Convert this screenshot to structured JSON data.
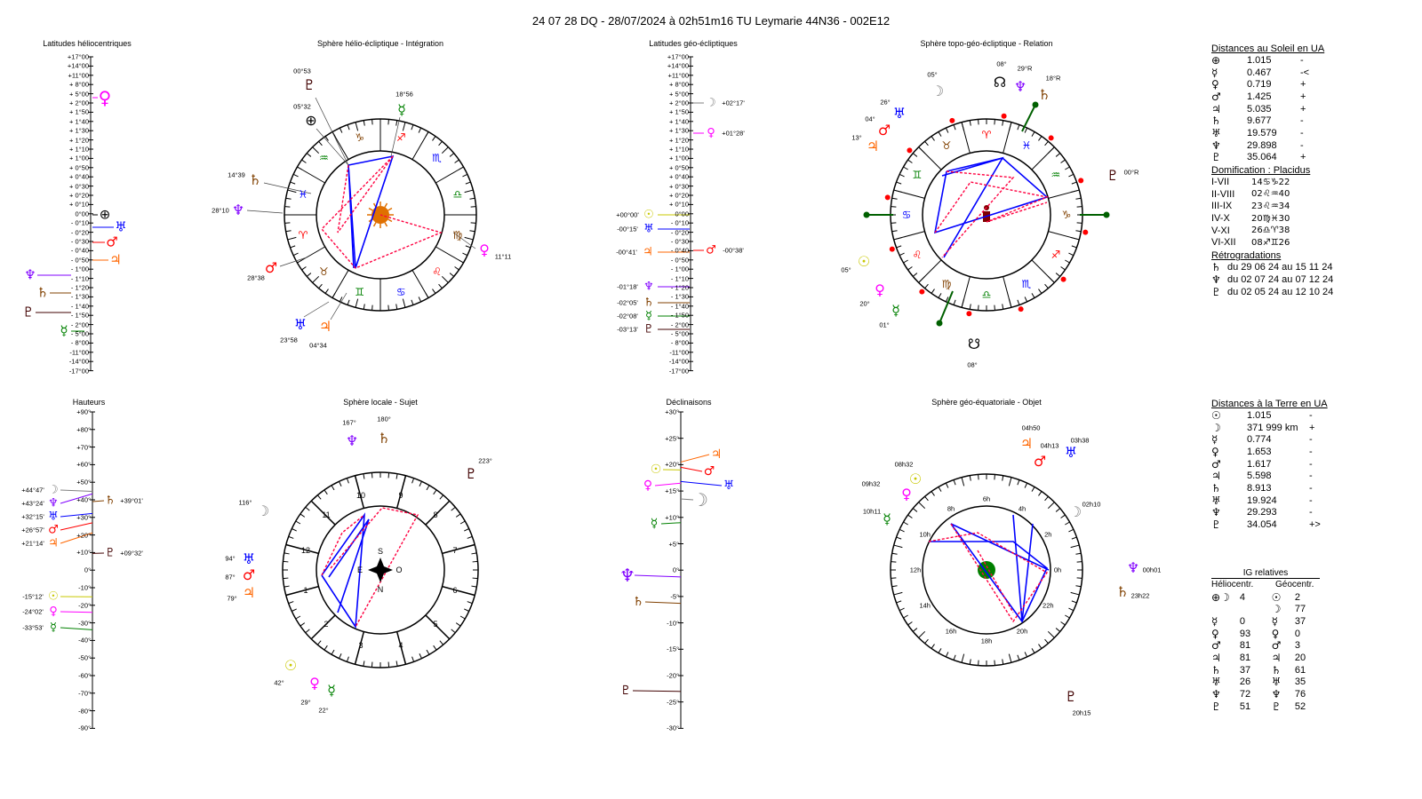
{
  "title": "24 07 28 DQ   -  28/07/2024 à 02h51m16 TU  Leymarie  44N36 - 002E12",
  "panels": {
    "helio_lat": "Latitudes héliocentriques",
    "helio_sphere": "Sphère hélio-écliptique - Intégration",
    "geo_lat": "Latitudes géo-écliptiques",
    "topo": "Sphère topo-géo-écliptique - Relation",
    "heights": "Hauteurs",
    "local": "Sphère locale - Sujet",
    "decl": "Déclinaisons",
    "equat": "Sphère géo-équatoriale - Objet"
  },
  "colors": {
    "sun": "#c8c800",
    "moon": "#808080",
    "mercury": "#008000",
    "venus": "#ff00ff",
    "mars": "#ff0000",
    "jupiter": "#ff6600",
    "saturn": "#804000",
    "uranus": "#0000ff",
    "neptune": "#8000ff",
    "pluto": "#400000",
    "aspect_red": "#ff0040",
    "aspect_blue": "#0000ff",
    "arrow": "#006000"
  },
  "lat_scale": [
    "+17°00",
    "+14°00",
    "+11°00",
    "+ 8°00",
    "+ 5°00",
    "+ 2°00",
    "+ 1°50",
    "+ 1°40",
    "+ 1°30",
    "+ 1°20",
    "+ 1°10",
    "+ 1°00",
    "+ 0°50",
    "+ 0°40",
    "+ 0°30",
    "+ 0°20",
    "+ 0°10",
    "0°00",
    "- 0°10",
    "- 0°20",
    "- 0°30",
    "- 0°40",
    "- 0°50",
    "- 1°00",
    "- 1°10",
    "- 1°20",
    "- 1°30",
    "- 1°40",
    "- 1°50",
    "- 2°00",
    "- 5°00",
    "- 8°00",
    "-11°00",
    "-14°00",
    "-17°00"
  ],
  "height_scale": [
    "+90°",
    "+80°",
    "+70°",
    "+60°",
    "+50°",
    "+40°",
    "+30°",
    "+20°",
    "+10°",
    "0°",
    "-10°",
    "-20°",
    "-30°",
    "-40°",
    "-50°",
    "-60°",
    "-70°",
    "-80°",
    "-90°"
  ],
  "decl_scale": [
    "+30°",
    "+25°",
    "+20°",
    "+15°",
    "+10°",
    "+5°",
    "0°",
    "-5°",
    "-10°",
    "-15°",
    "-20°",
    "-25°",
    "-30°"
  ],
  "helio_lat_markers": [
    {
      "glyph": "♀",
      "color": "#ff00ff"
    },
    {
      "glyph": "⊕",
      "color": "#000000"
    },
    {
      "glyph": "♅",
      "color": "#0000ff"
    },
    {
      "glyph": "♂",
      "color": "#ff0000"
    },
    {
      "glyph": "♃",
      "color": "#ff6600"
    },
    {
      "glyph": "♆",
      "color": "#8000ff"
    },
    {
      "glyph": "♄",
      "color": "#804000"
    },
    {
      "glyph": "♇",
      "color": "#400000"
    },
    {
      "glyph": "☿",
      "color": "#008000"
    }
  ],
  "geo_lat_markers": [
    {
      "glyph": "☽",
      "label": "+02°17'",
      "color": "#808080"
    },
    {
      "glyph": "♀",
      "label": "+01°28'",
      "color": "#ff00ff"
    },
    {
      "glyph": "☉",
      "label": "+00°00'",
      "color": "#c8c800"
    },
    {
      "glyph": "♅",
      "label": "-00°15'",
      "color": "#0000ff"
    },
    {
      "glyph": "♃",
      "label": "-00°41'",
      "color": "#ff6600"
    },
    {
      "glyph": "♂",
      "label": "-00°38'",
      "color": "#ff0000"
    },
    {
      "glyph": "♆",
      "label": "-01°18'",
      "color": "#8000ff"
    },
    {
      "glyph": "♄",
      "label": "-02°05'",
      "color": "#804000"
    },
    {
      "glyph": "☿",
      "label": "-02°08'",
      "color": "#008000"
    },
    {
      "glyph": "♇",
      "label": "-03°13'",
      "color": "#400000"
    }
  ],
  "height_markers": [
    {
      "glyph": "☽",
      "label": "+44°47'",
      "value": 44.8,
      "color": "#808080"
    },
    {
      "glyph": "♆",
      "label": "+43°24'",
      "value": 43.4,
      "color": "#8000ff"
    },
    {
      "glyph": "♅",
      "label": "+32°15'",
      "value": 32.25,
      "color": "#0000ff"
    },
    {
      "glyph": "♂",
      "label": "+26°57'",
      "value": 26.95,
      "color": "#ff0000"
    },
    {
      "glyph": "♃",
      "label": "+21°14'",
      "value": 21.2,
      "color": "#ff6600"
    },
    {
      "glyph": "♄",
      "label": "+39°01'",
      "value": 39.0,
      "color": "#804000"
    },
    {
      "glyph": "♇",
      "label": "+09°32'",
      "value": 9.5,
      "color": "#400000"
    },
    {
      "glyph": "☉",
      "label": "-15°12'",
      "value": -15.2,
      "color": "#c8c800"
    },
    {
      "glyph": "♀",
      "label": "-24°02'",
      "value": -24.0,
      "color": "#ff00ff"
    },
    {
      "glyph": "☿",
      "label": "-33°53'",
      "value": -33.9,
      "color": "#008000"
    }
  ],
  "decl_markers": [
    {
      "glyph": "♃",
      "value": 20.5,
      "color": "#ff6600"
    },
    {
      "glyph": "☉",
      "value": 19.0,
      "color": "#c8c800"
    },
    {
      "glyph": "♂",
      "value": 19.5,
      "color": "#ff0000"
    },
    {
      "glyph": "♀",
      "value": 16.5,
      "color": "#ff00ff"
    },
    {
      "glyph": "♅",
      "value": 16.8,
      "color": "#0000ff"
    },
    {
      "glyph": "☽",
      "value": 13.5,
      "color": "#808080"
    },
    {
      "glyph": "☿",
      "value": 9.0,
      "color": "#008000"
    },
    {
      "glyph": "♆",
      "value": -1.3,
      "color": "#8000ff"
    },
    {
      "glyph": "♄",
      "value": -6.3,
      "color": "#804000"
    },
    {
      "glyph": "♇",
      "value": -23.0,
      "color": "#400000"
    }
  ],
  "zodiac": [
    "♈",
    "♉",
    "♊",
    "♋",
    "♌",
    "♍",
    "♎",
    "♏",
    "♐",
    "♑",
    "♒",
    "♓"
  ],
  "zodiac_colors": [
    "#ff0000",
    "#804000",
    "#008000",
    "#0000ff",
    "#ff0000",
    "#804000",
    "#008000",
    "#0000ff",
    "#ff0000",
    "#804000",
    "#008000",
    "#0000ff"
  ],
  "helio_planets": [
    {
      "glyph": "♇",
      "label": "00°53",
      "color": "#400000"
    },
    {
      "glyph": "⊕",
      "label": "05°32",
      "color": "#000000"
    },
    {
      "glyph": "☿",
      "label": "18°56",
      "color": "#008000"
    },
    {
      "glyph": "♄",
      "label": "14°39",
      "color": "#804000"
    },
    {
      "glyph": "♆",
      "label": "28°10",
      "color": "#8000ff"
    },
    {
      "glyph": "♂",
      "label": "28°38",
      "color": "#ff0000"
    },
    {
      "glyph": "♅",
      "label": "23°58",
      "color": "#0000ff"
    },
    {
      "glyph": "♃",
      "label": "04°34",
      "color": "#ff6600"
    },
    {
      "glyph": "♀",
      "label": "11°11",
      "color": "#ff00ff"
    }
  ],
  "topo_planets": [
    {
      "glyph": "☽",
      "label": "05°",
      "color": "#808080"
    },
    {
      "glyph": "☊",
      "label": "08°",
      "color": "#000000"
    },
    {
      "glyph": "♆",
      "label": "29°R",
      "color": "#8000ff"
    },
    {
      "glyph": "♄",
      "label": "18°R",
      "color": "#804000"
    },
    {
      "glyph": "♅",
      "label": "26°",
      "color": "#0000ff"
    },
    {
      "glyph": "♂",
      "label": "04°",
      "color": "#ff0000"
    },
    {
      "glyph": "♃",
      "label": "13°",
      "color": "#ff6600"
    },
    {
      "glyph": "♇",
      "label": "00°R",
      "color": "#400000"
    },
    {
      "glyph": "☉",
      "label": "05°",
      "color": "#c8c800"
    },
    {
      "glyph": "♀",
      "label": "20°",
      "color": "#ff00ff"
    },
    {
      "glyph": "☿",
      "label": "01°",
      "color": "#008000"
    },
    {
      "glyph": "☋",
      "label": "08°",
      "color": "#000000"
    }
  ],
  "local_houses": [
    "1",
    "2",
    "3",
    "4",
    "5",
    "6",
    "7",
    "8",
    "9",
    "10",
    "11",
    "12"
  ],
  "local_planets": [
    {
      "glyph": "♆",
      "label": "167°",
      "color": "#8000ff"
    },
    {
      "glyph": "♄",
      "label": "180°",
      "color": "#804000"
    },
    {
      "glyph": "♇",
      "label": "223°",
      "color": "#400000"
    },
    {
      "glyph": "☽",
      "label": "116°",
      "color": "#808080"
    },
    {
      "glyph": "♅",
      "label": "94°",
      "color": "#0000ff"
    },
    {
      "glyph": "♂",
      "label": "87°",
      "color": "#ff0000"
    },
    {
      "glyph": "♃",
      "label": "79°",
      "color": "#ff6600"
    },
    {
      "glyph": "☉",
      "label": "42°",
      "color": "#c8c800"
    },
    {
      "glyph": "♀",
      "label": "29°",
      "color": "#ff00ff"
    },
    {
      "glyph": "☿",
      "label": "22°",
      "color": "#008000"
    }
  ],
  "compass": {
    "s": "S",
    "e": "E",
    "o": "O",
    "n": "N"
  },
  "hours": [
    "0h",
    "2h",
    "4h",
    "6h",
    "8h",
    "10h",
    "12h",
    "14h",
    "16h",
    "18h",
    "20h",
    "22h"
  ],
  "equat_planets": [
    {
      "glyph": "♃",
      "label": "04h50",
      "color": "#ff6600"
    },
    {
      "glyph": "♂",
      "label": "04h13",
      "color": "#ff0000"
    },
    {
      "glyph": "♅",
      "label": "03h38",
      "color": "#0000ff"
    },
    {
      "glyph": "☉",
      "label": "08h32",
      "color": "#c8c800"
    },
    {
      "glyph": "♀",
      "label": "09h32",
      "color": "#ff00ff"
    },
    {
      "glyph": "☿",
      "label": "10h11",
      "color": "#008000"
    },
    {
      "glyph": "☽",
      "label": "02h10",
      "color": "#808080"
    },
    {
      "glyph": "♆",
      "label": "00h01",
      "color": "#8000ff"
    },
    {
      "glyph": "♄",
      "label": "23h22",
      "color": "#804000"
    },
    {
      "glyph": "♇",
      "label": "20h15",
      "color": "#400000"
    }
  ],
  "sun_distances": {
    "title": "Distances au Soleil en UA",
    "rows": [
      {
        "glyph": "⊕",
        "value": "1.015",
        "sign": "-"
      },
      {
        "glyph": "☿",
        "value": "0.467",
        "sign": "-<"
      },
      {
        "glyph": "♀",
        "value": "0.719",
        "sign": "+"
      },
      {
        "glyph": "♂",
        "value": "1.425",
        "sign": "+"
      },
      {
        "glyph": "♃",
        "value": "5.035",
        "sign": "+"
      },
      {
        "glyph": "♄",
        "value": "9.677",
        "sign": "-"
      },
      {
        "glyph": "♅",
        "value": "19.579",
        "sign": "-"
      },
      {
        "glyph": "♆",
        "value": "29.898",
        "sign": "-"
      },
      {
        "glyph": "♇",
        "value": "35.064",
        "sign": "+"
      }
    ]
  },
  "domification": {
    "title": "Domification : Placidus",
    "rows": [
      {
        "house": "I-VII",
        "value": "14♋♑22"
      },
      {
        "house": "II-VIII",
        "value": "02♌♒40"
      },
      {
        "house": "III-IX",
        "value": "23♌♒34"
      },
      {
        "house": "IV-X",
        "value": "20♍♓30"
      },
      {
        "house": "V-XI",
        "value": "26♎♈38"
      },
      {
        "house": "VI-XII",
        "value": "08♐♊26"
      }
    ]
  },
  "retro": {
    "title": "Rétrogradations",
    "rows": [
      {
        "glyph": "♄",
        "text": "du 29 06 24 au 15 11 24"
      },
      {
        "glyph": "♆",
        "text": "du 02 07 24 au 07 12 24"
      },
      {
        "glyph": "♇",
        "text": "du 02 05 24 au 12 10 24"
      }
    ]
  },
  "earth_distances": {
    "title": "Distances à la Terre en UA",
    "rows": [
      {
        "glyph": "☉",
        "value": "1.015",
        "sign": "-"
      },
      {
        "glyph": "☽",
        "value": "371 999 km",
        "sign": "+"
      },
      {
        "glyph": "☿",
        "value": "0.774",
        "sign": "-"
      },
      {
        "glyph": "♀",
        "value": "1.653",
        "sign": "-"
      },
      {
        "glyph": "♂",
        "value": "1.617",
        "sign": "-"
      },
      {
        "glyph": "♃",
        "value": "5.598",
        "sign": "-"
      },
      {
        "glyph": "♄",
        "value": "8.913",
        "sign": "-"
      },
      {
        "glyph": "♅",
        "value": "19.924",
        "sign": "-"
      },
      {
        "glyph": "♆",
        "value": "29.293",
        "sign": "-"
      },
      {
        "glyph": "♇",
        "value": "34.054",
        "sign": "+>"
      }
    ]
  },
  "ig": {
    "title": "IG relatives",
    "helio_label": "Héliocentr.",
    "geo_label": "Géocentr.",
    "helio": [
      {
        "glyph": "⊕☽",
        "value": "4"
      },
      {
        "glyph": "",
        "value": ""
      },
      {
        "glyph": "☿",
        "value": "0"
      },
      {
        "glyph": "♀",
        "value": "93"
      },
      {
        "glyph": "♂",
        "value": "81"
      },
      {
        "glyph": "♃",
        "value": "81"
      },
      {
        "glyph": "♄",
        "value": "37"
      },
      {
        "glyph": "♅",
        "value": "26"
      },
      {
        "glyph": "♆",
        "value": "72"
      },
      {
        "glyph": "♇",
        "value": "51"
      }
    ],
    "geo": [
      {
        "glyph": "☉",
        "value": "2"
      },
      {
        "glyph": "☽",
        "value": "77"
      },
      {
        "glyph": "☿",
        "value": "37"
      },
      {
        "glyph": "♀",
        "value": "0"
      },
      {
        "glyph": "♂",
        "value": "3"
      },
      {
        "glyph": "♃",
        "value": "20"
      },
      {
        "glyph": "♄",
        "value": "61"
      },
      {
        "glyph": "♅",
        "value": "35"
      },
      {
        "glyph": "♆",
        "value": "76"
      },
      {
        "glyph": "♇",
        "value": "52"
      }
    ]
  }
}
